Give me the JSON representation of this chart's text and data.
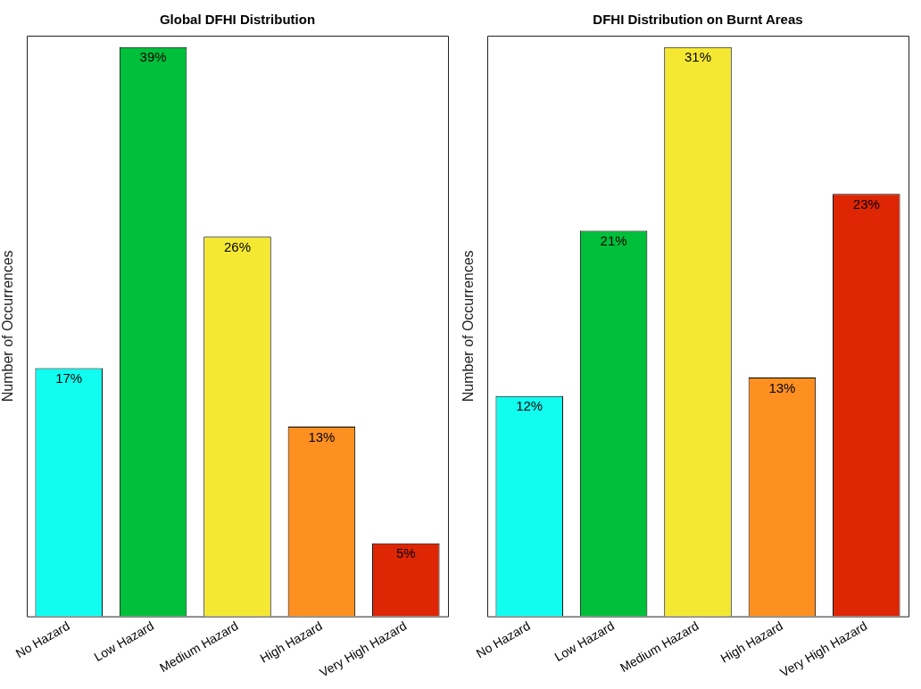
{
  "chart_data": [
    {
      "type": "bar",
      "title": "Global DFHI Distribution",
      "ylabel": "Number of Occurrences",
      "categories": [
        "No Hazard",
        "Low Hazard",
        "Medium Hazard",
        "High Hazard",
        "Very High Hazard"
      ],
      "values": [
        17,
        39,
        26,
        13,
        5
      ],
      "value_labels": [
        "17%",
        "39%",
        "26%",
        "13%",
        "5%"
      ],
      "colors": [
        "#10fdf0",
        "#00bf3a",
        "#f5e832",
        "#fe9022",
        "#de2504"
      ],
      "grid": false,
      "legend": false,
      "tick_labels": "x"
    },
    {
      "type": "bar",
      "title": "DFHI Distribution on Burnt Areas",
      "ylabel": "Number of Occurrences",
      "categories": [
        "No Hazard",
        "Low Hazard",
        "Medium Hazard",
        "High Hazard",
        "Very High Hazard"
      ],
      "values": [
        12,
        21,
        31,
        13,
        23
      ],
      "value_labels": [
        "12%",
        "21%",
        "31%",
        "13%",
        "23%"
      ],
      "colors": [
        "#10fdf0",
        "#00bf3a",
        "#f5e832",
        "#fe9022",
        "#de2504"
      ],
      "grid": false,
      "legend": false,
      "tick_labels": "x"
    }
  ]
}
